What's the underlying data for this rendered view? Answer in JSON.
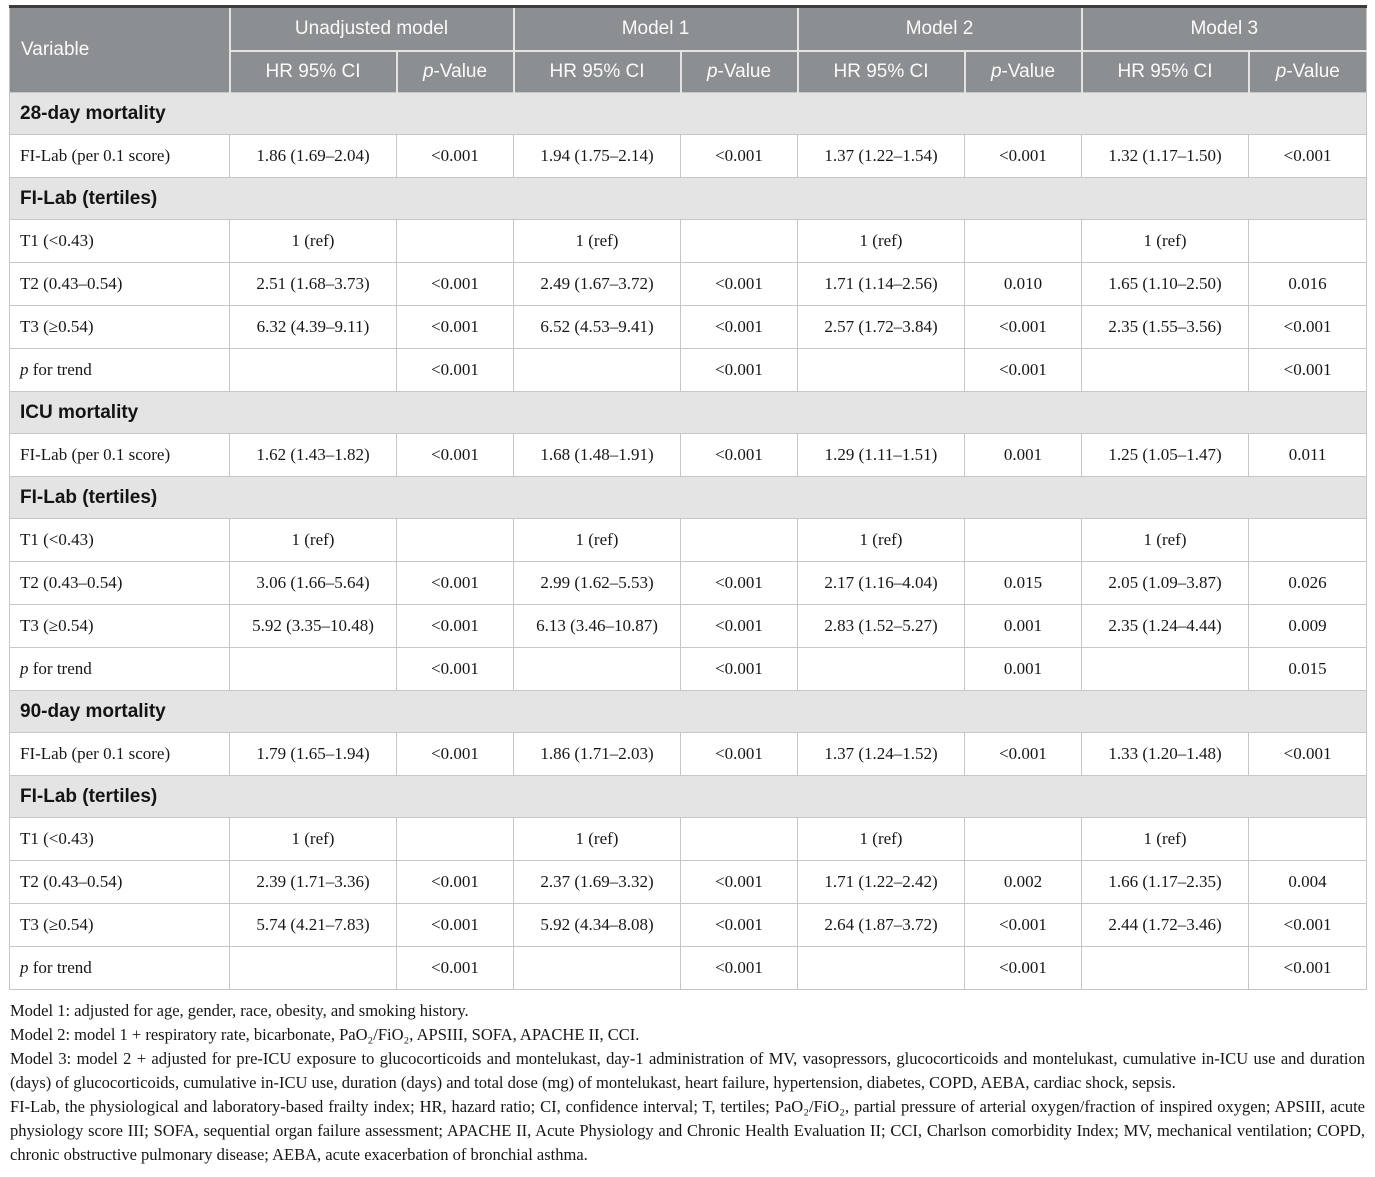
{
  "colors": {
    "header_bg": "#8b8f91",
    "header_divider": "#e3e3e3",
    "section_bg": "#e4e4e4",
    "grid_line": "#c6c6c6"
  },
  "header": {
    "variable": "Variable",
    "groups": [
      "Unadjusted model",
      "Model 1",
      "Model 2",
      "Model 3"
    ],
    "hr_label": "HR 95% CI",
    "p_italic": "p",
    "p_rest": "-Value"
  },
  "rows": [
    {
      "type": "section",
      "label": "28-day mortality"
    },
    {
      "type": "data",
      "label": "FI-Lab (per 0.1 score)",
      "cells": [
        "1.86 (1.69–2.04)",
        "<0.001",
        "1.94 (1.75–2.14)",
        "<0.001",
        "1.37 (1.22–1.54)",
        "<0.001",
        "1.32 (1.17–1.50)",
        "<0.001"
      ]
    },
    {
      "type": "section",
      "label": "FI-Lab (tertiles)"
    },
    {
      "type": "data",
      "label": "T1 (<0.43)",
      "cells": [
        "1 (ref)",
        "",
        "1 (ref)",
        "",
        "1 (ref)",
        "",
        "1 (ref)",
        ""
      ]
    },
    {
      "type": "data",
      "label": "T2 (0.43–0.54)",
      "cells": [
        "2.51 (1.68–3.73)",
        "<0.001",
        "2.49 (1.67–3.72)",
        "<0.001",
        "1.71 (1.14–2.56)",
        "0.010",
        "1.65 (1.10–2.50)",
        "0.016"
      ]
    },
    {
      "type": "data",
      "label": "T3 (≥0.54)",
      "cells": [
        "6.32 (4.39–9.11)",
        "<0.001",
        "6.52 (4.53–9.41)",
        "<0.001",
        "2.57 (1.72–3.84)",
        "<0.001",
        "2.35 (1.55–3.56)",
        "<0.001"
      ]
    },
    {
      "type": "ptrend",
      "label_italic": "p",
      "label_rest": " for trend",
      "cells": [
        "",
        "<0.001",
        "",
        "<0.001",
        "",
        "<0.001",
        "",
        "<0.001"
      ]
    },
    {
      "type": "section",
      "label": "ICU mortality"
    },
    {
      "type": "data",
      "label": "FI-Lab (per 0.1 score)",
      "cells": [
        "1.62 (1.43–1.82)",
        "<0.001",
        "1.68 (1.48–1.91)",
        "<0.001",
        "1.29 (1.11–1.51)",
        "0.001",
        "1.25 (1.05–1.47)",
        "0.011"
      ]
    },
    {
      "type": "section",
      "label": "FI-Lab (tertiles)"
    },
    {
      "type": "data",
      "label": "T1 (<0.43)",
      "cells": [
        "1 (ref)",
        "",
        "1 (ref)",
        "",
        "1 (ref)",
        "",
        "1 (ref)",
        ""
      ]
    },
    {
      "type": "data",
      "label": "T2 (0.43–0.54)",
      "cells": [
        "3.06 (1.66–5.64)",
        "<0.001",
        "2.99 (1.62–5.53)",
        "<0.001",
        "2.17 (1.16–4.04)",
        "0.015",
        "2.05 (1.09–3.87)",
        "0.026"
      ]
    },
    {
      "type": "data",
      "label": "T3 (≥0.54)",
      "cells": [
        "5.92 (3.35–10.48)",
        "<0.001",
        "6.13 (3.46–10.87)",
        "<0.001",
        "2.83 (1.52–5.27)",
        "0.001",
        "2.35 (1.24–4.44)",
        "0.009"
      ]
    },
    {
      "type": "ptrend",
      "label_italic": "p",
      "label_rest": " for trend",
      "cells": [
        "",
        "<0.001",
        "",
        "<0.001",
        "",
        "0.001",
        "",
        "0.015"
      ]
    },
    {
      "type": "section",
      "label": "90-day mortality"
    },
    {
      "type": "data",
      "label": "FI-Lab (per 0.1 score)",
      "cells": [
        "1.79 (1.65–1.94)",
        "<0.001",
        "1.86 (1.71–2.03)",
        "<0.001",
        "1.37 (1.24–1.52)",
        "<0.001",
        "1.33 (1.20–1.48)",
        "<0.001"
      ]
    },
    {
      "type": "section",
      "label": "FI-Lab (tertiles)"
    },
    {
      "type": "data",
      "label": "T1 (<0.43)",
      "cells": [
        "1 (ref)",
        "",
        "1 (ref)",
        "",
        "1 (ref)",
        "",
        "1 (ref)",
        ""
      ]
    },
    {
      "type": "data",
      "label": "T2 (0.43–0.54)",
      "cells": [
        "2.39 (1.71–3.36)",
        "<0.001",
        "2.37 (1.69–3.32)",
        "<0.001",
        "1.71 (1.22–2.42)",
        "0.002",
        "1.66 (1.17–2.35)",
        "0.004"
      ]
    },
    {
      "type": "data",
      "label": "T3 (≥0.54)",
      "cells": [
        "5.74 (4.21–7.83)",
        "<0.001",
        "5.92 (4.34–8.08)",
        "<0.001",
        "2.64 (1.87–3.72)",
        "<0.001",
        "2.44 (1.72–3.46)",
        "<0.001"
      ]
    },
    {
      "type": "ptrend",
      "label_italic": "p",
      "label_rest": " for trend",
      "cells": [
        "",
        "<0.001",
        "",
        "<0.001",
        "",
        "<0.001",
        "",
        "<0.001"
      ]
    }
  ],
  "footnotes": [
    "Model 1: adjusted for age, gender, race, obesity, and smoking history.",
    "Model 2: model 1 + respiratory rate, bicarbonate, PaO₂/FiO₂, APSIII, SOFA, APACHE II, CCI.",
    "Model 3: model 2 + adjusted for pre-ICU exposure to glucocorticoids and montelukast, day-1 administration of MV, vasopressors, glucocorticoids and montelukast, cumulative in-ICU use and duration (days) of glucocorticoids, cumulative in-ICU use, duration (days) and total dose (mg) of montelukast, heart failure, hypertension, diabetes, COPD, AEBA, cardiac shock, sepsis.",
    "FI-Lab, the physiological and laboratory-based frailty index; HR, hazard ratio; CI, confidence interval; T, tertiles; PaO₂/FiO₂, partial pressure of arterial oxygen/fraction of inspired oxygen; APSIII, acute physiology score III; SOFA, sequential organ failure assessment; APACHE II, Acute Physiology and Chronic Health Evaluation II; CCI, Charlson comorbidity Index; MV, mechanical ventilation; COPD, chronic obstructive pulmonary disease; AEBA, acute exacerbation of bronchial asthma."
  ]
}
